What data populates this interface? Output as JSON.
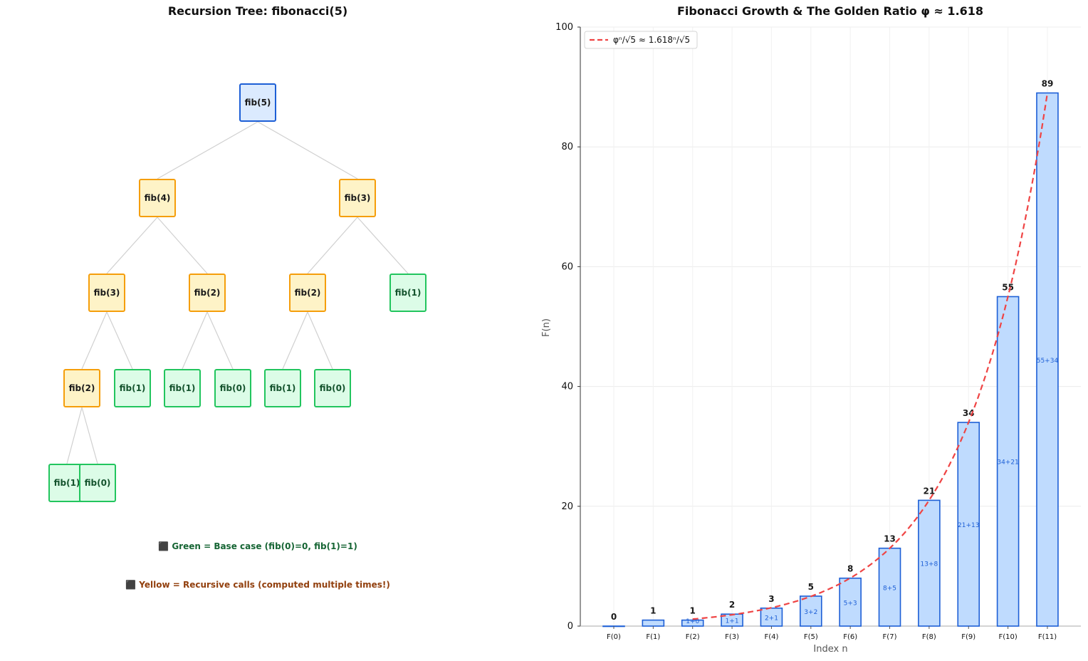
{
  "tree": {
    "title": "Recursion Tree: fibonacci(5)",
    "legend_green": "⬛ Green = Base case (fib(0)=0, fib(1)=1)",
    "legend_yellow": "⬛ Yellow = Recursive calls (computed multiple times!)",
    "colors": {
      "root": "#1d5fd6",
      "recursive": "#f59e0b",
      "base": "#22c55e",
      "edge": "#d0d0d0"
    },
    "nodes": [
      {
        "label": "fib(5)",
        "kind": "root"
      },
      {
        "label": "fib(4)",
        "kind": "rec"
      },
      {
        "label": "fib(3)",
        "kind": "rec"
      },
      {
        "label": "fib(3)",
        "kind": "rec"
      },
      {
        "label": "fib(2)",
        "kind": "rec"
      },
      {
        "label": "fib(2)",
        "kind": "rec"
      },
      {
        "label": "fib(1)",
        "kind": "base"
      },
      {
        "label": "fib(2)",
        "kind": "rec"
      },
      {
        "label": "fib(1)",
        "kind": "base"
      },
      {
        "label": "fib(1)",
        "kind": "base"
      },
      {
        "label": "fib(0)",
        "kind": "base"
      },
      {
        "label": "fib(1)",
        "kind": "base"
      },
      {
        "label": "fib(0)",
        "kind": "base"
      },
      {
        "label": "fib(1)",
        "kind": "base"
      },
      {
        "label": "fib(0)",
        "kind": "base"
      }
    ]
  },
  "chart_data": {
    "type": "bar",
    "title": "Fibonacci Growth & The Golden Ratio φ ≈ 1.618",
    "xlabel": "Index n",
    "ylabel": "F(n)",
    "ylim": [
      0,
      100
    ],
    "yticks": [
      0,
      20,
      40,
      60,
      80,
      100
    ],
    "grid": true,
    "categories": [
      "F(0)",
      "F(1)",
      "F(2)",
      "F(3)",
      "F(4)",
      "F(5)",
      "F(6)",
      "F(7)",
      "F(8)",
      "F(9)",
      "F(10)",
      "F(11)"
    ],
    "values": [
      0,
      1,
      1,
      2,
      3,
      5,
      8,
      13,
      21,
      34,
      55,
      89
    ],
    "sum_labels": [
      "",
      "",
      "1+0",
      "1+1",
      "2+1",
      "3+2",
      "5+3",
      "8+5",
      "13+8",
      "21+13",
      "34+21",
      "55+34"
    ],
    "bar_color": "#bfdbfe",
    "bar_edge_color": "#1d5fd6",
    "line": {
      "name": "φⁿ/√5 ≈ 1.618ⁿ/√5",
      "color": "#ef4444",
      "style": "dashed",
      "x": [
        2,
        3,
        4,
        5,
        6,
        7,
        8,
        9,
        10,
        11
      ],
      "values": [
        1.17,
        1.89,
        3.07,
        4.96,
        8.02,
        12.98,
        21.0,
        33.98,
        54.98,
        88.96
      ]
    },
    "legend_position": "top-left"
  }
}
